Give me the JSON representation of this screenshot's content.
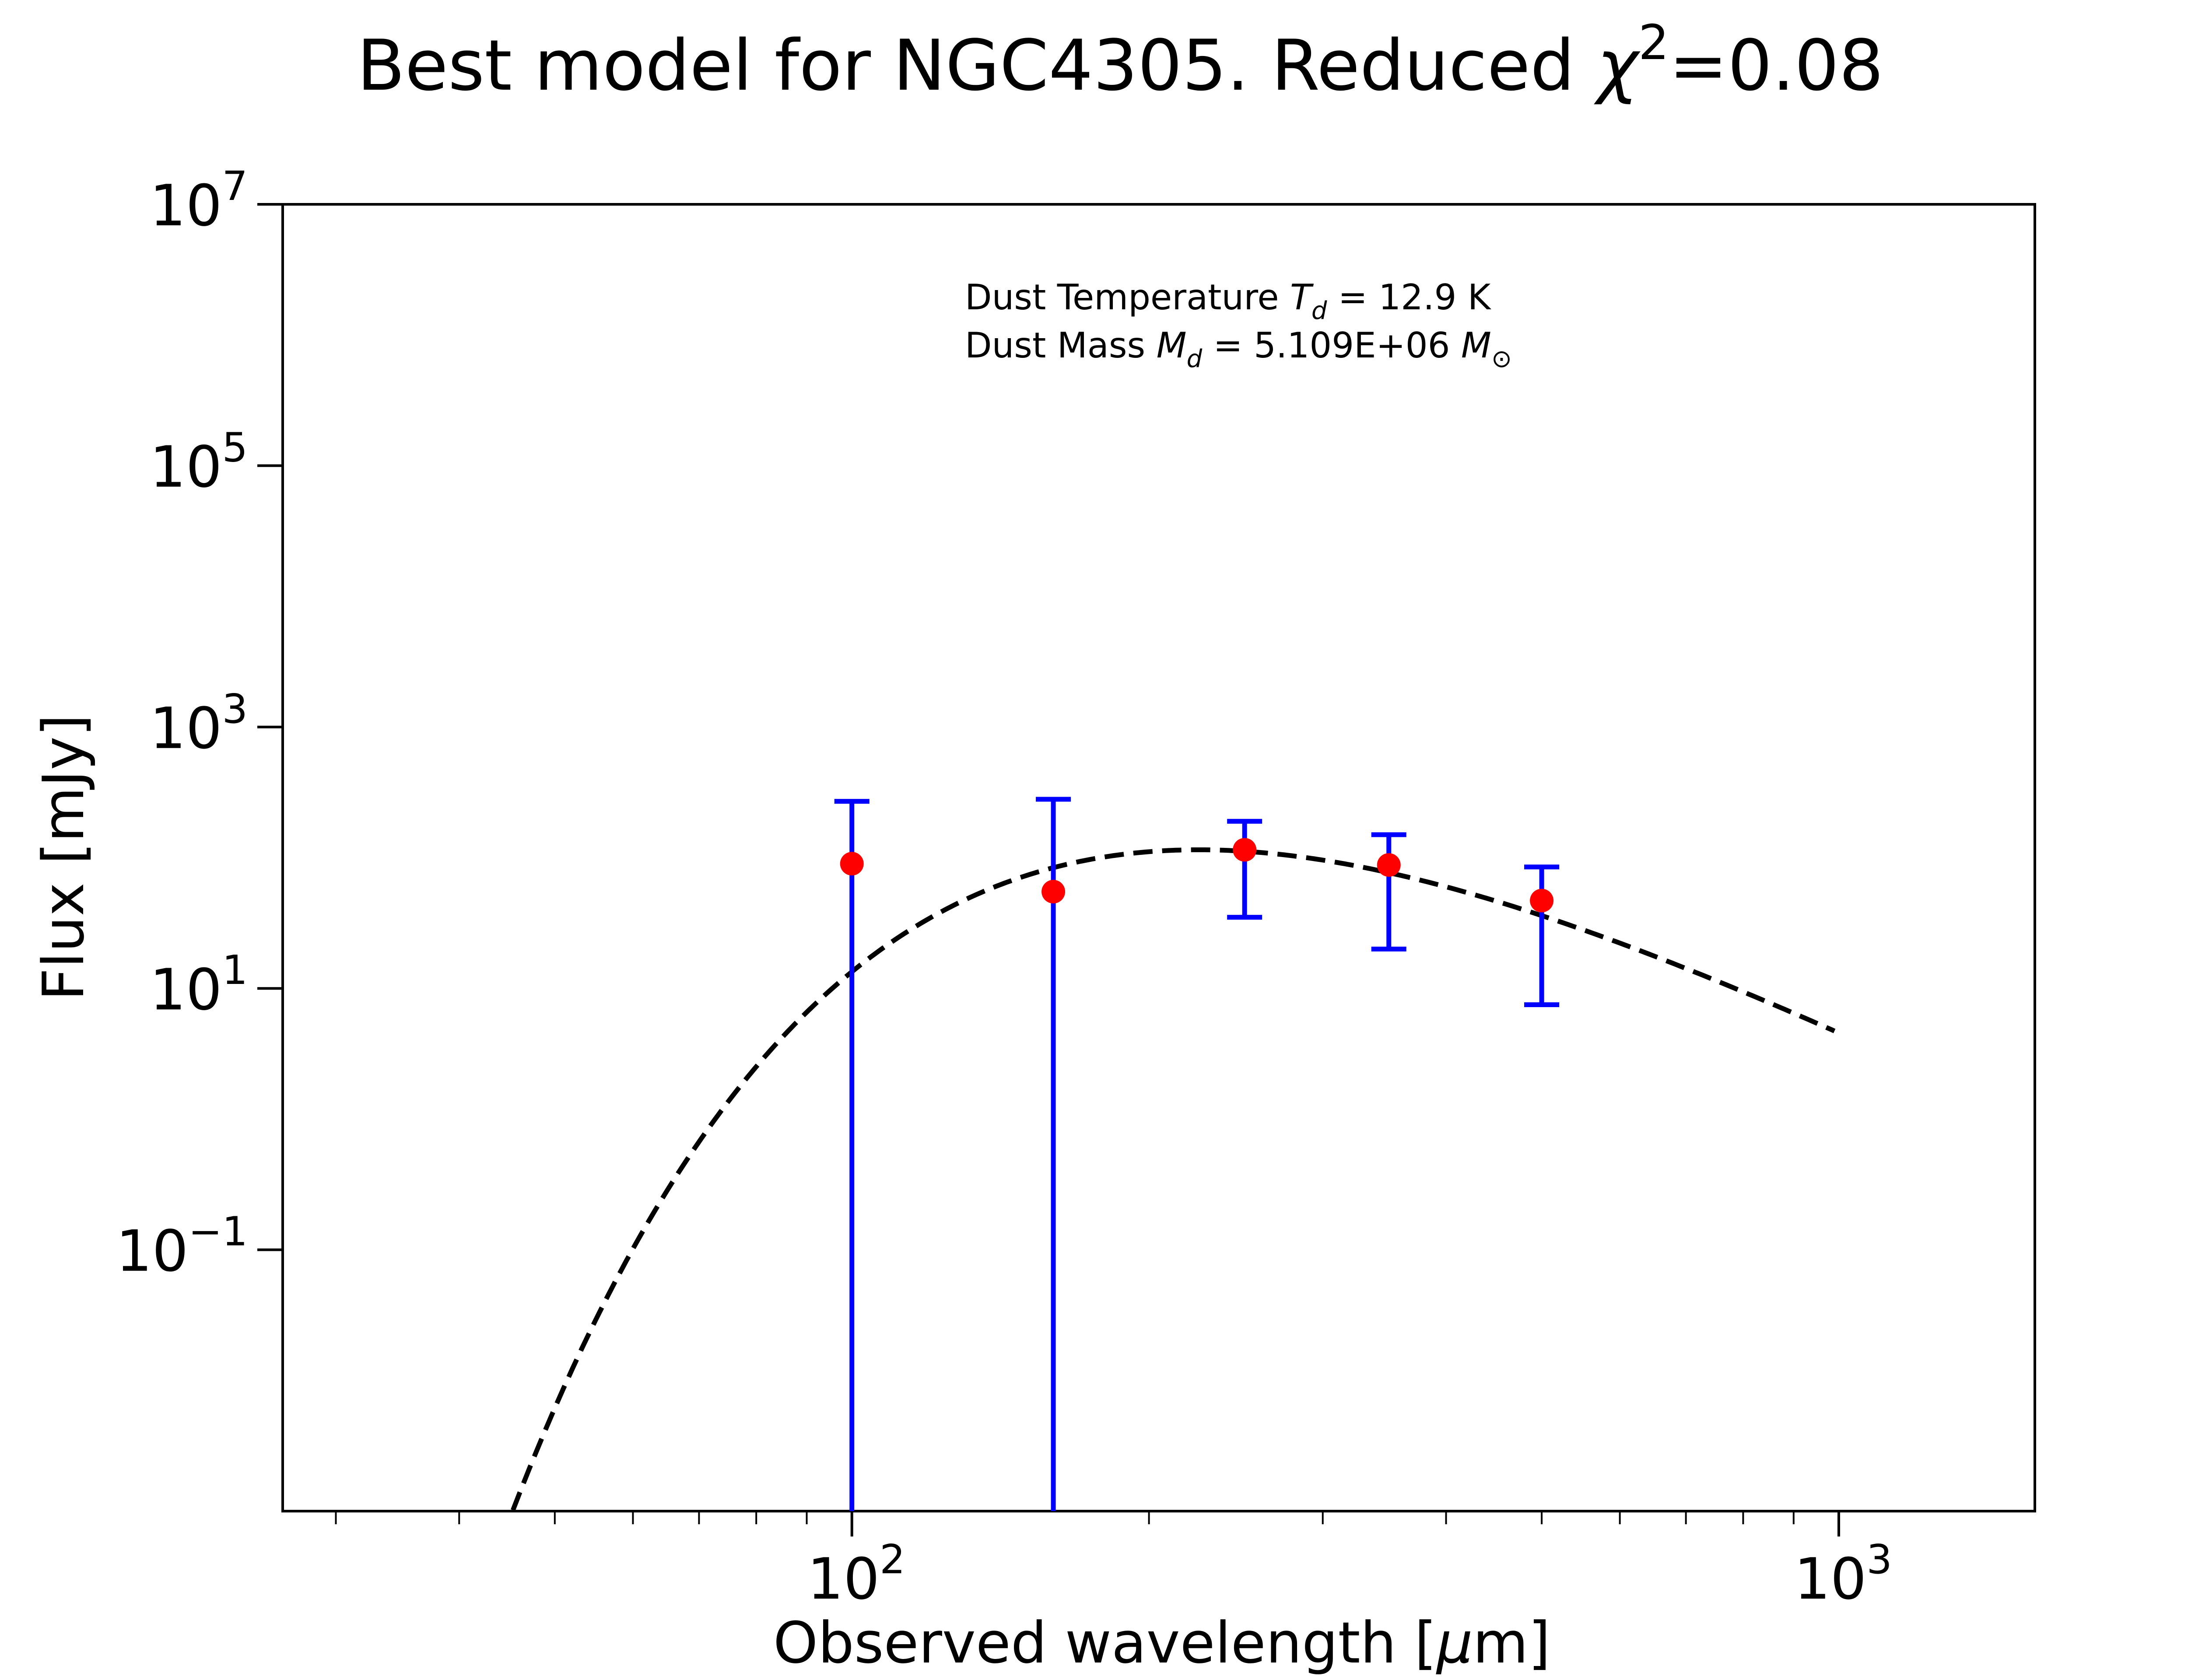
{
  "chart_data": {
    "type": "scatter",
    "title_main": "Best model for NGC4305. Reduced ",
    "title_symbol": "χ",
    "title_sup": "2",
    "title_tail": "=0.08",
    "xlabel_main": "Observed wavelength [",
    "xlabel_mu": "μ",
    "xlabel_tail": "m]",
    "ylabel": "Flux [mJy]",
    "xscale": "log",
    "yscale": "log",
    "xlim": [
      26.5,
      1580
    ],
    "ylim": [
      0.001,
      10000000
    ],
    "x_ticks": [
      {
        "value": 100,
        "base": "10",
        "exp": "2"
      },
      {
        "value": 1000,
        "base": "10",
        "exp": "3"
      }
    ],
    "y_ticks": [
      {
        "value": 0.1,
        "base": "10",
        "exp": "−1"
      },
      {
        "value": 10,
        "base": "10",
        "exp": "1"
      },
      {
        "value": 1000,
        "base": "10",
        "exp": "3"
      },
      {
        "value": 100000,
        "base": "10",
        "exp": "5"
      },
      {
        "value": 10000000,
        "base": "10",
        "exp": "7"
      }
    ],
    "annotations": {
      "line1_prefix": "Dust Temperature ",
      "line1_var": "T",
      "line1_sub": "d",
      "line1_value": " = 12.9 K",
      "line2_prefix": "Dust Mass ",
      "line2_var": "M",
      "line2_sub": "d",
      "line2_value": " = 5.109E+06 ",
      "line2_unit": "M",
      "line2_unit_sub": "⊙"
    },
    "observations": [
      {
        "x": 100,
        "y": 90,
        "yerr_low": 0.001,
        "yerr_high": 270
      },
      {
        "x": 160,
        "y": 55,
        "yerr_low": 0.001,
        "yerr_high": 280
      },
      {
        "x": 250,
        "y": 115,
        "yerr_low": 35,
        "yerr_high": 190
      },
      {
        "x": 350,
        "y": 88,
        "yerr_low": 20,
        "yerr_high": 150
      },
      {
        "x": 500,
        "y": 47,
        "yerr_low": 7.5,
        "yerr_high": 85
      }
    ],
    "model": {
      "temperature_K": 12.9,
      "peak_flux_mJy": 115,
      "beta": 2.0,
      "x_range": [
        45,
        990
      ]
    },
    "colors": {
      "points": "#ff0000",
      "errorbars": "#0000ff",
      "model": "#000000"
    }
  }
}
